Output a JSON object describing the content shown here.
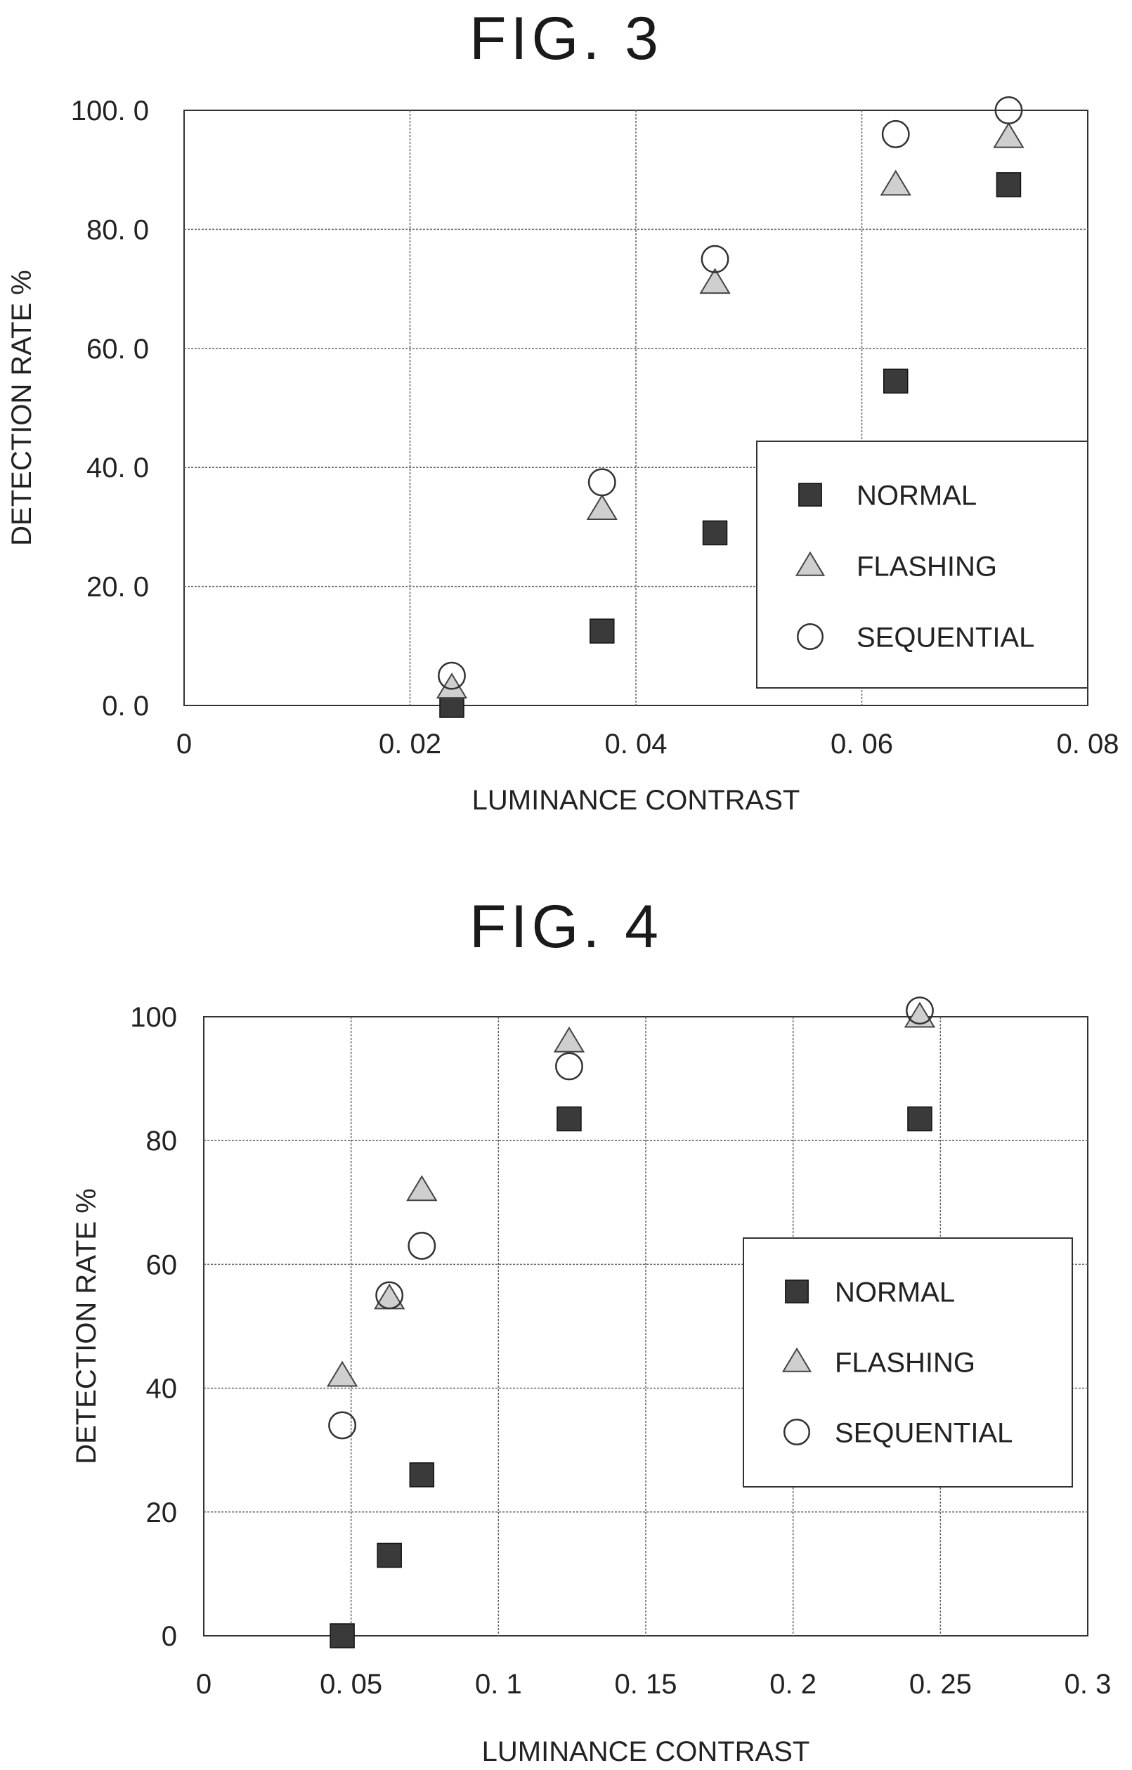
{
  "figures": [
    {
      "title": "FIG. 3",
      "chart_data": {
        "type": "scatter",
        "title": "FIG. 3",
        "xlabel": "LUMINANCE CONTRAST",
        "ylabel": "DETECTION RATE %",
        "xlim": [
          0,
          0.08
        ],
        "ylim": [
          0,
          100
        ],
        "x_ticks": [
          0,
          0.02,
          0.04,
          0.06,
          0.08
        ],
        "x_tick_labels": [
          "0",
          "0. 02",
          "0. 04",
          "0. 06",
          "0. 08"
        ],
        "y_ticks": [
          0,
          20,
          40,
          60,
          80,
          100
        ],
        "y_tick_labels": [
          "0. 0",
          "20. 0",
          "40. 0",
          "60. 0",
          "80. 0",
          "100. 0"
        ],
        "grid": true,
        "legend_position": "bottom-right",
        "series": [
          {
            "name": "NORMAL",
            "marker": "square",
            "points": [
              [
                0.0237,
                0
              ],
              [
                0.037,
                12.5
              ],
              [
                0.047,
                29
              ],
              [
                0.063,
                54.5
              ],
              [
                0.073,
                87.5
              ]
            ]
          },
          {
            "name": "FLASHING",
            "marker": "triangle",
            "points": [
              [
                0.0237,
                3
              ],
              [
                0.037,
                33
              ],
              [
                0.047,
                71
              ],
              [
                0.063,
                87.5
              ],
              [
                0.073,
                95.5
              ]
            ]
          },
          {
            "name": "SEQUENTIAL",
            "marker": "circle",
            "points": [
              [
                0.0237,
                5
              ],
              [
                0.037,
                37.5
              ],
              [
                0.047,
                75
              ],
              [
                0.063,
                96
              ],
              [
                0.073,
                100
              ]
            ]
          }
        ]
      }
    },
    {
      "title": "FIG. 4",
      "chart_data": {
        "type": "scatter",
        "title": "FIG. 4",
        "xlabel": "LUMINANCE CONTRAST",
        "ylabel": "DETECTION RATE %",
        "xlim": [
          0,
          0.3
        ],
        "ylim": [
          0,
          100
        ],
        "x_ticks": [
          0,
          0.05,
          0.1,
          0.15,
          0.2,
          0.25,
          0.3
        ],
        "x_tick_labels": [
          "0",
          "0. 05",
          "0. 1",
          "0. 15",
          "0. 2",
          "0. 25",
          "0. 3"
        ],
        "y_ticks": [
          0,
          20,
          40,
          60,
          80,
          100
        ],
        "y_tick_labels": [
          "0",
          "20",
          "40",
          "60",
          "80",
          "100"
        ],
        "grid": true,
        "legend_position": "right",
        "series": [
          {
            "name": "NORMAL",
            "marker": "square",
            "points": [
              [
                0.047,
                0
              ],
              [
                0.063,
                13
              ],
              [
                0.074,
                26
              ],
              [
                0.124,
                83.5
              ],
              [
                0.243,
                83.5
              ]
            ]
          },
          {
            "name": "FLASHING",
            "marker": "triangle",
            "points": [
              [
                0.047,
                42
              ],
              [
                0.063,
                54.5
              ],
              [
                0.074,
                72
              ],
              [
                0.124,
                96
              ],
              [
                0.243,
                100
              ]
            ]
          },
          {
            "name": "SEQUENTIAL",
            "marker": "circle",
            "points": [
              [
                0.047,
                34
              ],
              [
                0.063,
                55
              ],
              [
                0.074,
                63
              ],
              [
                0.124,
                92
              ],
              [
                0.243,
                101
              ]
            ]
          }
        ]
      }
    }
  ]
}
